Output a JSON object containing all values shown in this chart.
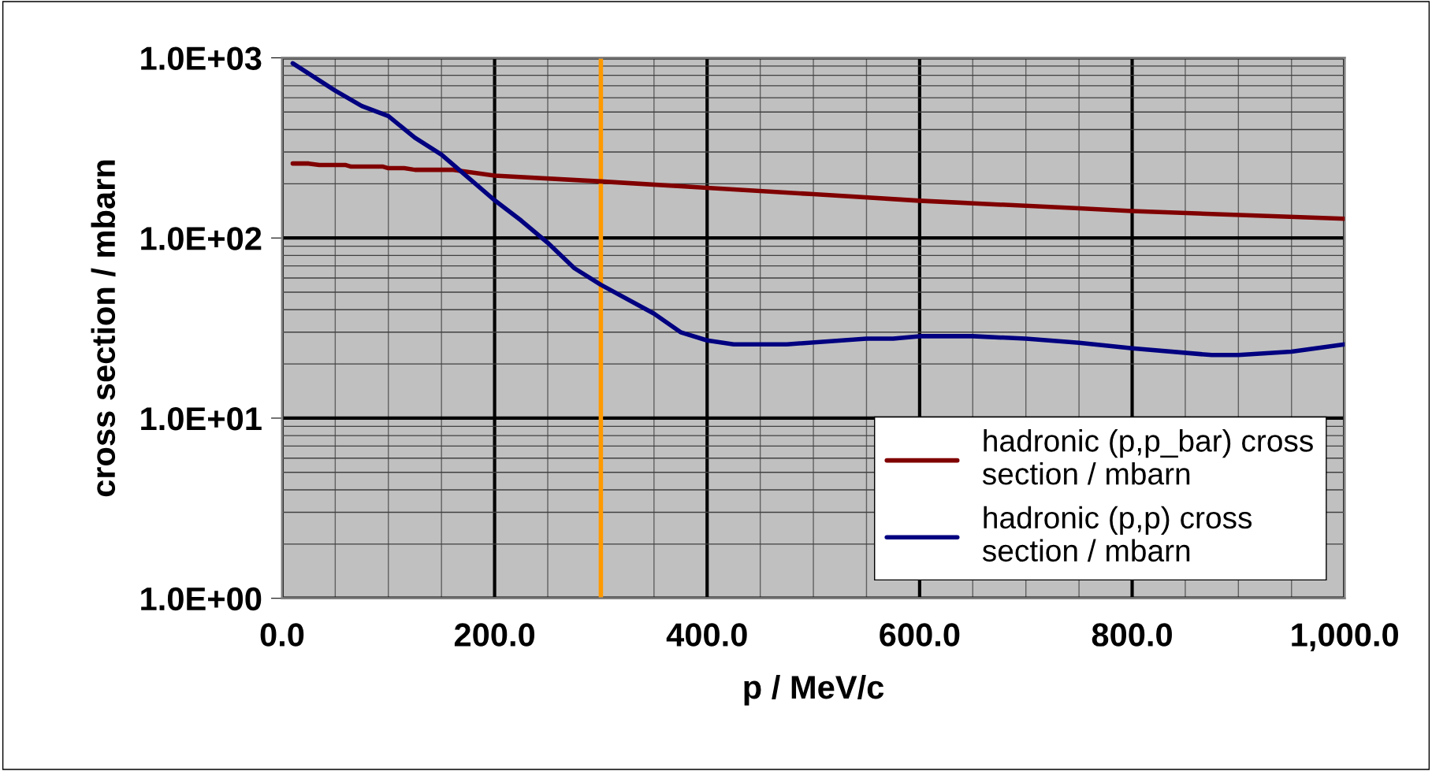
{
  "chart_data": {
    "type": "line",
    "xlabel": "p / MeV/c",
    "ylabel": "cross section / mbarn",
    "log": "y",
    "xlim": [
      0,
      1000
    ],
    "ylim": [
      1,
      1000
    ],
    "xticks": [
      {
        "value": 0,
        "label": "0.0"
      },
      {
        "value": 200,
        "label": "200.0"
      },
      {
        "value": 400,
        "label": "400.0"
      },
      {
        "value": 600,
        "label": "600.0"
      },
      {
        "value": 800,
        "label": "800.0"
      },
      {
        "value": 1000,
        "label": "1,000.0"
      }
    ],
    "yticks": [
      {
        "value": 1,
        "label": "1.0E+00"
      },
      {
        "value": 10,
        "label": "1.0E+01"
      },
      {
        "value": 100,
        "label": "1.0E+02"
      },
      {
        "value": 1000,
        "label": "1.0E+03"
      }
    ],
    "grid": true,
    "legend": "bottom right",
    "marker": "none",
    "line_style": "solid",
    "series": [
      {
        "name": "hadronic (p,p_bar) cross section / mbarn",
        "color": "#800000",
        "x": [
          10,
          25,
          35,
          60,
          65,
          95,
          100,
          115,
          125,
          160,
          200,
          300,
          400,
          500,
          600,
          750,
          800,
          1000
        ],
        "values": [
          259,
          259,
          254,
          254,
          249,
          249,
          244,
          244,
          239,
          239,
          222,
          206,
          190,
          175,
          161,
          146,
          141,
          128
        ]
      },
      {
        "name": "hadronic (p,p) cross section / mbarn",
        "color": "#000080",
        "x": [
          10,
          50,
          75,
          100,
          125,
          150,
          200,
          225,
          250,
          275,
          300,
          350,
          375,
          400,
          425,
          475,
          550,
          575,
          600,
          650,
          700,
          750,
          800,
          875,
          900,
          950,
          1000
        ],
        "values": [
          933,
          657,
          540,
          475,
          360,
          290,
          162,
          125,
          94,
          68,
          55,
          38,
          30,
          27,
          25.7,
          25.7,
          27.6,
          27.6,
          28.5,
          28.5,
          27.6,
          26.2,
          24.4,
          22.4,
          22.4,
          23.4,
          25.7
        ]
      }
    ],
    "ref_lines": [
      {
        "axis": "x",
        "value": 300,
        "color": "#ff9900",
        "line_style": "solid"
      }
    ]
  }
}
